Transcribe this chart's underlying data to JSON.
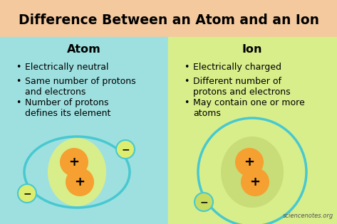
{
  "title": "Difference Between an Atom and an Ion",
  "title_bg": "#F5C99E",
  "left_bg": "#9EE0E0",
  "right_bg": "#D8EE8A",
  "left_header": "Atom",
  "right_header": "Ion",
  "atom_bullets": [
    "Electrically neutral",
    "Same number of protons\nand electrons",
    "Number of protons\ndefines its element"
  ],
  "ion_bullets": [
    "Electrically charged",
    "Different number of\nprotons and electrons",
    "May contain one or more\natoms"
  ],
  "nucleus_outer_color_atom": "#D8EE8A",
  "nucleus_outer_color_ion": "#C8DC78",
  "nucleus_inner_color": "#F5A030",
  "orbit_color": "#48C8D0",
  "electron_color_atom": "#DDED70",
  "electron_color_ion": "#C8DC60",
  "watermark": "sciencenotes.org"
}
